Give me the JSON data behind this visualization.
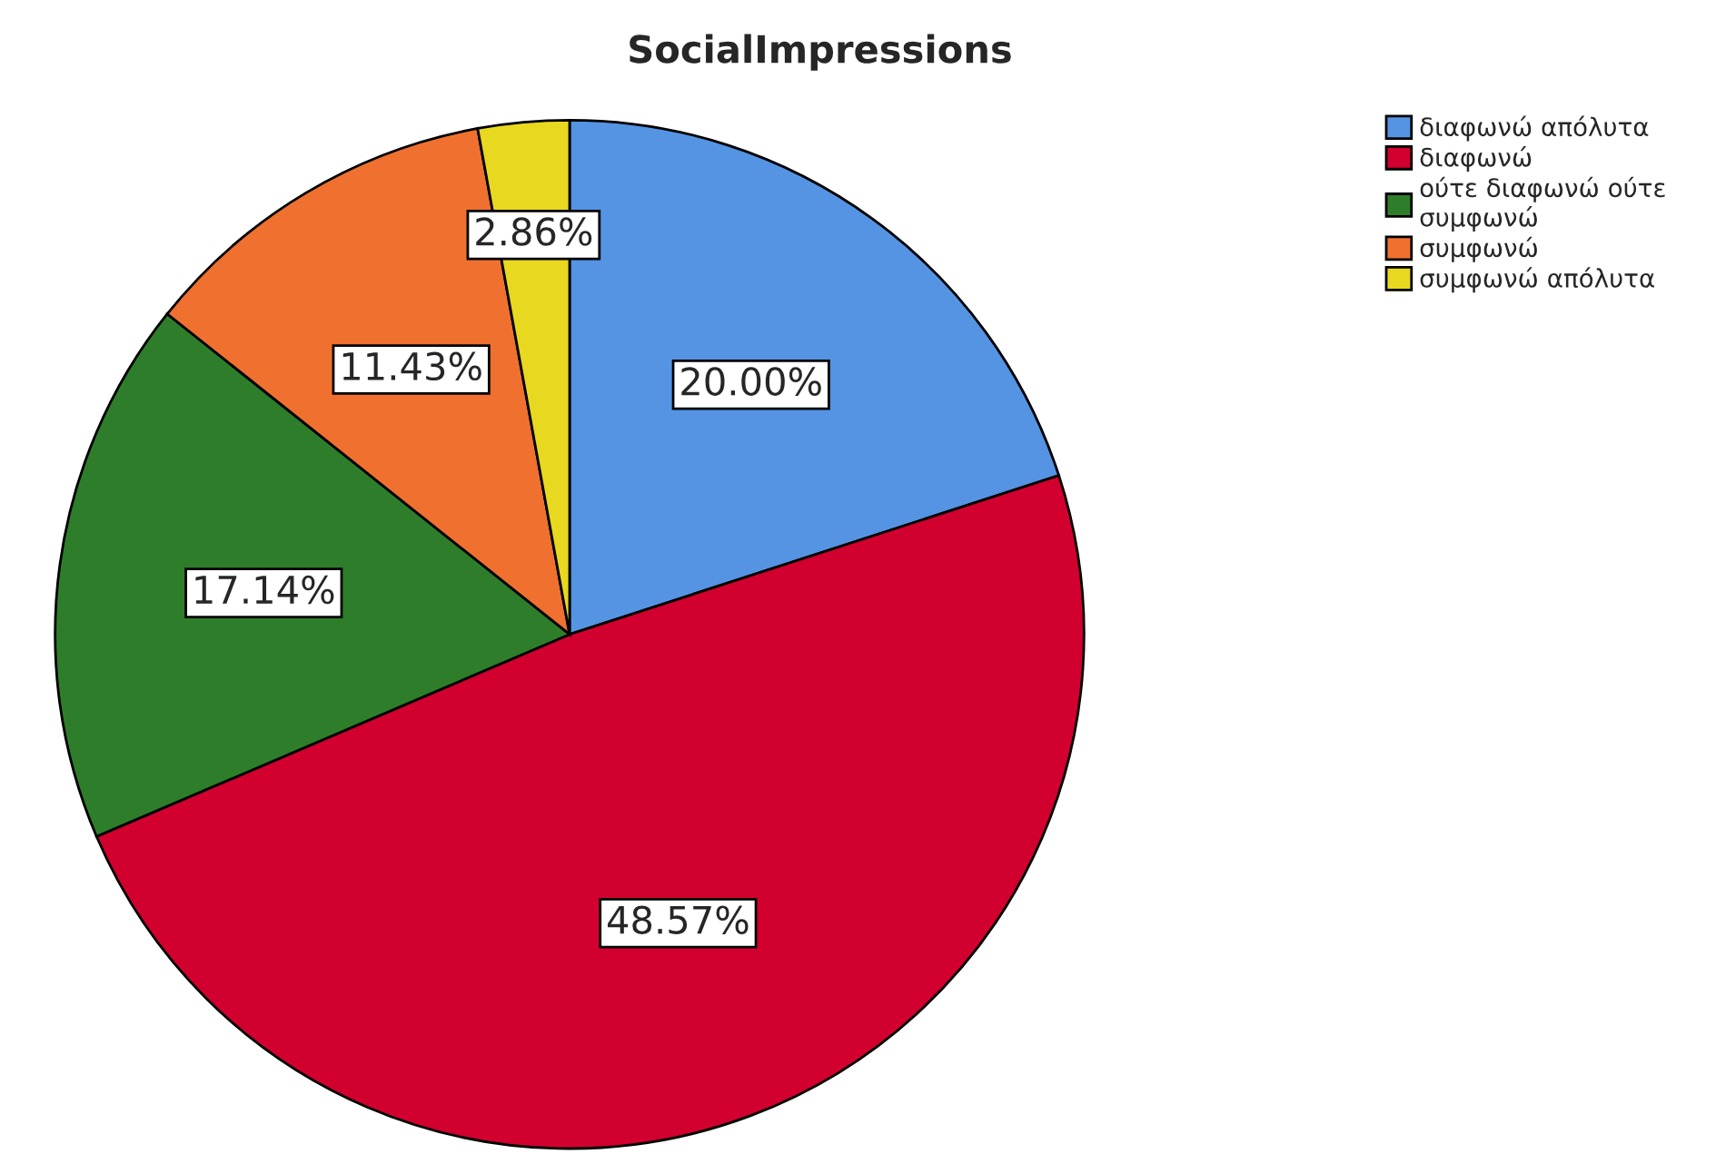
{
  "chart_data": {
    "type": "pie",
    "title": "SocialImpressions",
    "categories": [
      "διαφωνώ απόλυτα",
      "διαφωνώ",
      "ούτε διαφωνώ ούτε συμφωνώ",
      "συμφωνώ",
      "συμφωνώ απόλυτα"
    ],
    "values": [
      20.0,
      48.57,
      17.14,
      11.43,
      2.86
    ],
    "colors": [
      "#5593e3",
      "#d2002e",
      "#2e7d2a",
      "#f07030",
      "#e8d820"
    ],
    "value_labels": [
      "20.00%",
      "48.57%",
      "17.14%",
      "11.43%",
      "2.86%"
    ],
    "legend": "top right"
  }
}
